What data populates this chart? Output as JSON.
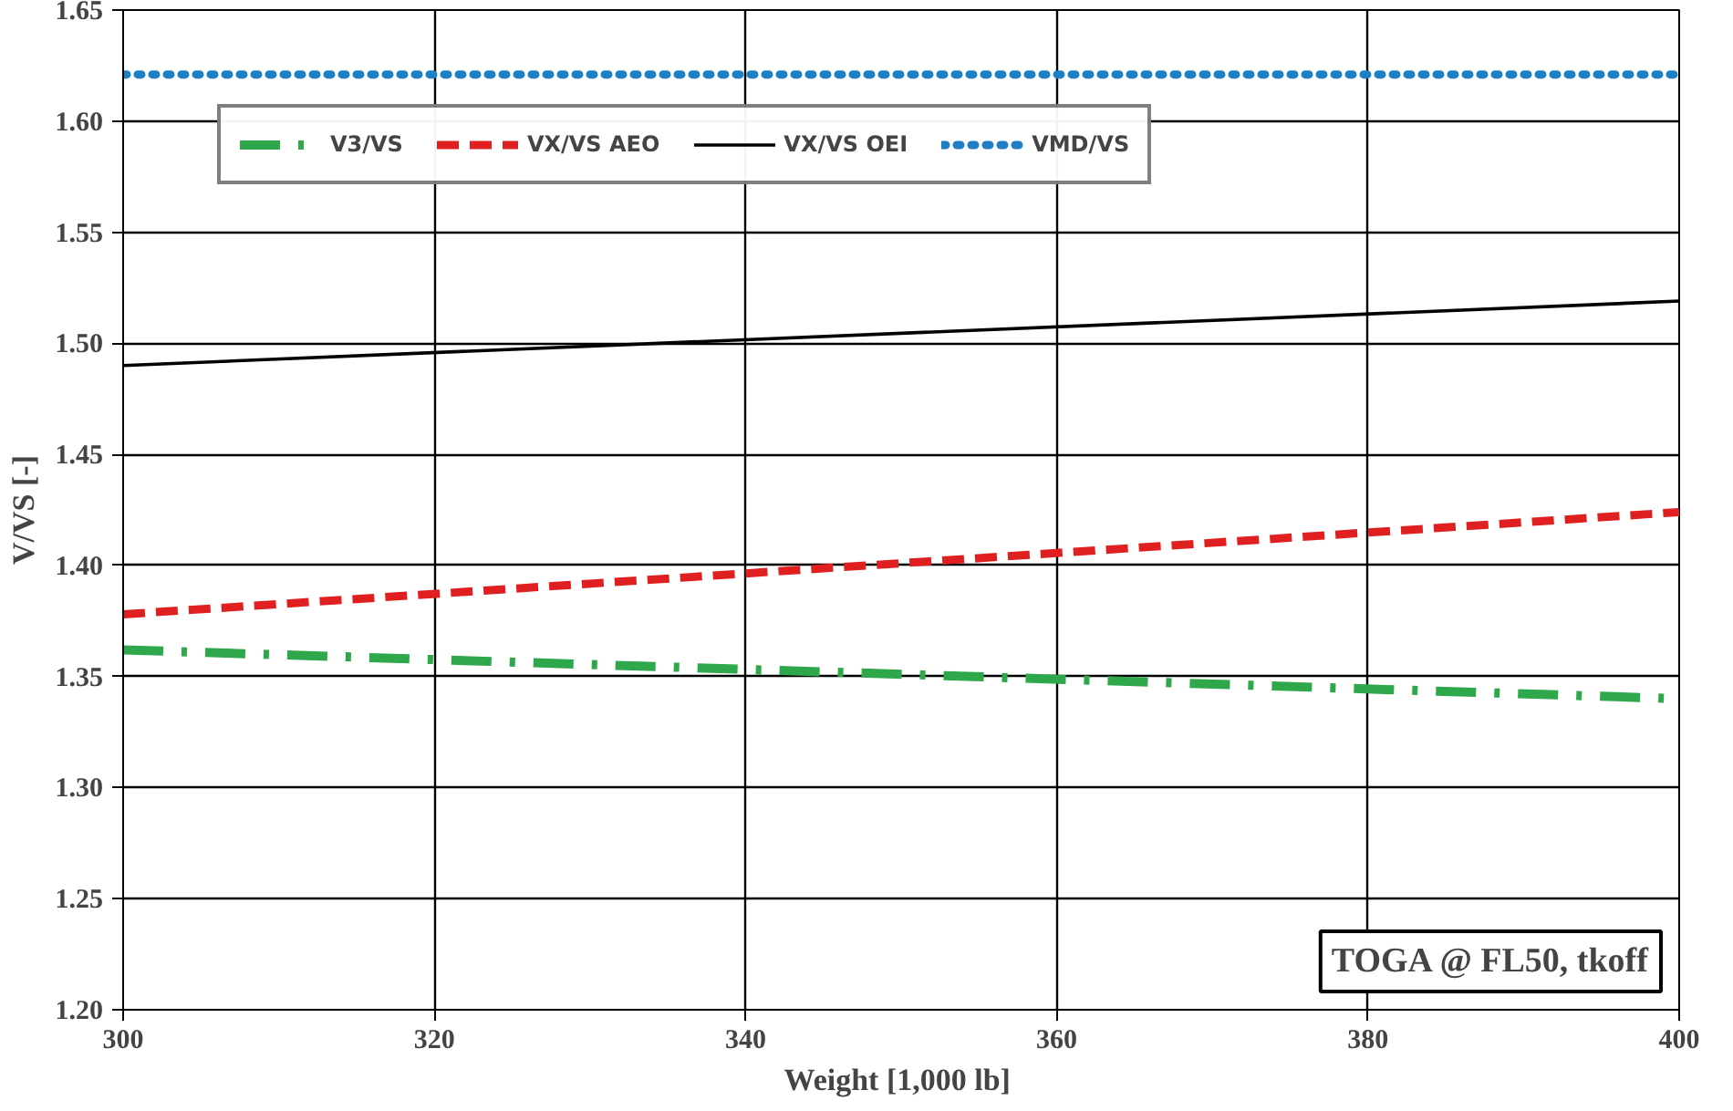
{
  "chart_data": {
    "type": "line",
    "xlabel": "Weight  [1,000 lb]",
    "ylabel": "V/VS [-]",
    "x": [
      300,
      400
    ],
    "series": [
      {
        "name": "V3/VS",
        "color": "#2ea84a",
        "values": [
          1.362,
          1.34
        ],
        "line_style": "dashdot"
      },
      {
        "name": "VX/VS AEO",
        "color": "#e02020",
        "values": [
          1.378,
          1.424
        ],
        "line_style": "dashed"
      },
      {
        "name": "VX/VS OEI",
        "color": "#000000",
        "values": [
          1.49,
          1.519
        ],
        "line_style": "solid"
      },
      {
        "name": "VMD/VS",
        "color": "#1f7fc4",
        "values": [
          1.621,
          1.621
        ],
        "line_style": "dotted"
      }
    ],
    "xlim": [
      300,
      400
    ],
    "xticks": [
      300,
      320,
      340,
      360,
      380,
      400
    ],
    "ylim": [
      1.2,
      1.65
    ],
    "yticks": [
      {
        "value": 1.2,
        "label": "1.20"
      },
      {
        "value": 1.25,
        "label": "1.25"
      },
      {
        "value": 1.3,
        "label": "1.30"
      },
      {
        "value": 1.35,
        "label": "1.35"
      },
      {
        "value": 1.4,
        "label": "1.40"
      },
      {
        "value": 1.45,
        "label": "1.45"
      },
      {
        "value": 1.5,
        "label": "1.50"
      },
      {
        "value": 1.55,
        "label": "1.55"
      },
      {
        "value": 1.6,
        "label": "1.60"
      },
      {
        "value": 1.65,
        "label": "1.65"
      }
    ],
    "grid": true,
    "legend": "top left",
    "marker": "none",
    "annotations": [
      "TOGA @ FL50, tkoff"
    ]
  }
}
